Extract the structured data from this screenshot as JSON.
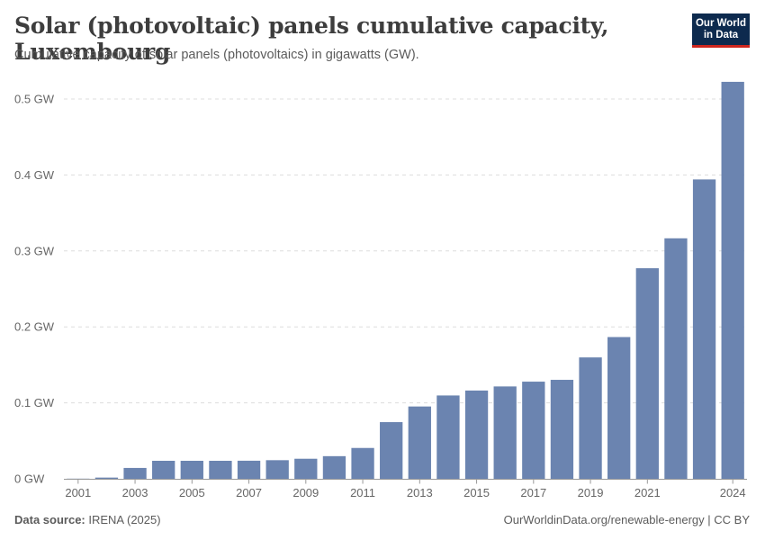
{
  "header": {
    "title": "Solar (photovoltaic) panels cumulative capacity, Luxembourg",
    "subtitle": "Cumulative capacity of solar panels (photovoltaics) in gigawatts (GW)."
  },
  "logo": {
    "line1": "Our World",
    "line2": "in Data"
  },
  "footer": {
    "source_label": "Data source:",
    "source_value": "IRENA (2025)",
    "credit": "OurWorldinData.org/renewable-energy | CC BY"
  },
  "colors": {
    "bar": "#6b84b0",
    "grid": "#dddddd",
    "axis": "#999999"
  },
  "chart_data": {
    "type": "bar",
    "title": "Solar (photovoltaic) panels cumulative capacity, Luxembourg",
    "ylabel": "GW",
    "ylim": [
      0,
      0.5
    ],
    "yticks": [
      0,
      0.1,
      0.2,
      0.3,
      0.4,
      0.5
    ],
    "ytick_labels": [
      "0 GW",
      "0.1 GW",
      "0.2 GW",
      "0.3 GW",
      "0.4 GW",
      "0.5 GW"
    ],
    "categories": [
      2001,
      2002,
      2003,
      2004,
      2005,
      2006,
      2007,
      2008,
      2009,
      2010,
      2011,
      2012,
      2013,
      2014,
      2015,
      2016,
      2017,
      2018,
      2019,
      2020,
      2021,
      2022,
      2023,
      2024
    ],
    "values": [
      0.0002,
      0.0016,
      0.0143,
      0.0237,
      0.0237,
      0.0237,
      0.0238,
      0.0245,
      0.0264,
      0.0298,
      0.0406,
      0.0746,
      0.0952,
      0.1097,
      0.1162,
      0.1216,
      0.1279,
      0.1303,
      0.1598,
      0.1866,
      0.2772,
      0.3166,
      0.3941,
      0.5226
    ],
    "xtick_labels": [
      "2001",
      "2003",
      "2005",
      "2007",
      "2009",
      "2011",
      "2013",
      "2015",
      "2017",
      "2019",
      "2021",
      "2024"
    ],
    "grid": true
  }
}
